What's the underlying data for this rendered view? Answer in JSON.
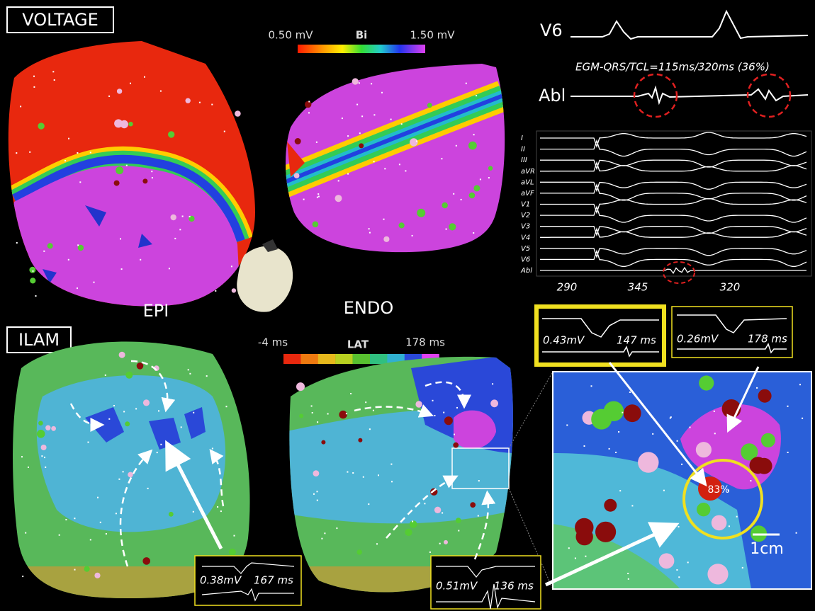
{
  "voltage_panel": {
    "label": "VOLTAGE",
    "scale": {
      "min_label": "0.50 mV",
      "title": "Bi",
      "max_label": "1.50 mV"
    },
    "maps": {
      "epi": "EPI",
      "endo": "ENDO"
    }
  },
  "egm": {
    "lead_top": "V6",
    "measurement": "EGM-QRS/TCL=115ms/320ms (36%)",
    "lead_abl": "Abl"
  },
  "ecg": {
    "leads": [
      "I",
      "II",
      "III",
      "aVR",
      "aVL",
      "aVF",
      "V1",
      "V2",
      "V3",
      "V4",
      "V5",
      "V6",
      "Abl"
    ],
    "cycle_lengths": [
      "290",
      "345",
      "320"
    ]
  },
  "ilam_panel": {
    "label": "ILAM",
    "scale": {
      "min_label": "-4 ms",
      "title": "LAT",
      "max_label": "178 ms"
    }
  },
  "electrograms": [
    {
      "amplitude": "0.43mV",
      "lat": "147 ms"
    },
    {
      "amplitude": "0.26mV",
      "lat": "178 ms"
    },
    {
      "amplitude": "0.38mV",
      "lat": "167 ms"
    },
    {
      "amplitude": "0.51mV",
      "lat": "136 ms"
    }
  ],
  "zoom": {
    "percent": "83%",
    "scale_bar": "1cm"
  }
}
